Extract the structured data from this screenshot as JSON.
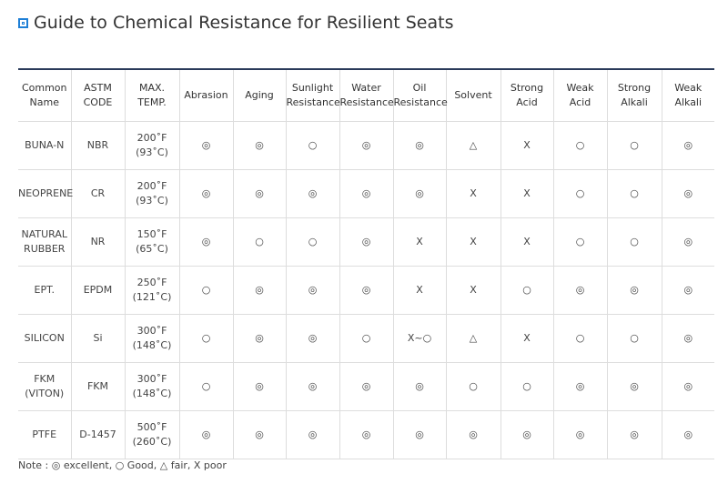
{
  "header": {
    "title": "Guide to Chemical Resistance for Resilient Seats"
  },
  "table": {
    "columns": [
      [
        "Common",
        "Name"
      ],
      [
        "ASTM",
        "CODE"
      ],
      [
        "MAX.",
        "TEMP."
      ],
      "Abrasion",
      "Aging",
      [
        "Sunlight",
        "Resistance"
      ],
      [
        "Water",
        "Resistance"
      ],
      [
        "Oil",
        "Resistance"
      ],
      "Solvent",
      [
        "Strong",
        "Acid"
      ],
      [
        "Weak",
        "Acid"
      ],
      [
        "Strong",
        "Alkali"
      ],
      [
        "Weak",
        "Alkali"
      ]
    ],
    "rows": [
      [
        "BUNA-N",
        "NBR",
        [
          "200˚F",
          "(93˚C)"
        ],
        "◎",
        "◎",
        "○",
        "◎",
        "◎",
        "△",
        "X",
        "○",
        "○",
        "◎"
      ],
      [
        "NEOPRENE",
        "CR",
        [
          "200˚F",
          "(93˚C)"
        ],
        "◎",
        "◎",
        "◎",
        "◎",
        "◎",
        "X",
        "X",
        "○",
        "○",
        "◎"
      ],
      [
        [
          "NATURAL",
          "RUBBER"
        ],
        "NR",
        [
          "150˚F",
          "(65˚C)"
        ],
        "◎",
        "○",
        "○",
        "◎",
        "X",
        "X",
        "X",
        "○",
        "○",
        "◎"
      ],
      [
        "EPT.",
        "EPDM",
        [
          "250˚F",
          "(121˚C)"
        ],
        "○",
        "◎",
        "◎",
        "◎",
        "X",
        "X",
        "○",
        "◎",
        "◎",
        "◎"
      ],
      [
        "SILICON",
        "Si",
        [
          "300˚F",
          "(148˚C)"
        ],
        "○",
        "◎",
        "◎",
        "○",
        "X~○",
        "△",
        "X",
        "○",
        "○",
        "◎"
      ],
      [
        [
          "FKM",
          "(VITON)"
        ],
        "FKM",
        [
          "300˚F",
          "(148˚C)"
        ],
        "○",
        "◎",
        "◎",
        "◎",
        "◎",
        "○",
        "○",
        "◎",
        "◎",
        "◎"
      ],
      [
        "PTFE",
        "D-1457",
        [
          "500˚F",
          "(260˚C)"
        ],
        "◎",
        "◎",
        "◎",
        "◎",
        "◎",
        "◎",
        "◎",
        "◎",
        "◎",
        "◎"
      ]
    ]
  },
  "note": "Note : ◎ excellent, ○ Good, △ fair, X poor"
}
